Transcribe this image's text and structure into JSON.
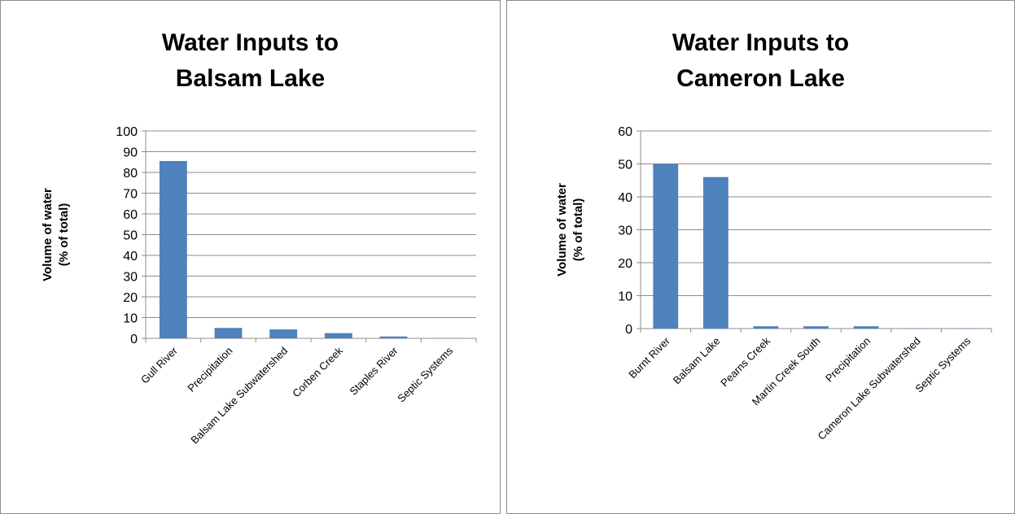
{
  "chart_data": [
    {
      "type": "bar",
      "title_lines": [
        "Water Inputs to",
        "Balsam Lake"
      ],
      "ylabel_lines": [
        "Volume of water",
        "(% of total)"
      ],
      "xlabel": "",
      "categories": [
        "Gull River",
        "Precipitation",
        "Balsam Lake Subwatershed",
        "Corben Creek",
        "Staples River",
        "Septic Systems"
      ],
      "values": [
        85.5,
        5.0,
        4.3,
        2.5,
        0.9,
        0.1
      ],
      "ylim": [
        0,
        100
      ],
      "yticks": [
        0,
        10,
        20,
        30,
        40,
        50,
        60,
        70,
        80,
        90,
        100
      ],
      "grid": true,
      "color": "#4f81bd"
    },
    {
      "type": "bar",
      "title_lines": [
        "Water Inputs to",
        "Cameron Lake"
      ],
      "ylabel_lines": [
        "Volume of water",
        "(% of total)"
      ],
      "xlabel": "",
      "categories": [
        "Burnt River",
        "Balsam Lake",
        "Pearns Creek",
        "Martin Creek South",
        "Precipitation",
        "Cameron Lake Subwatershed",
        "Septic Systems"
      ],
      "values": [
        50,
        46,
        0.7,
        0.7,
        0.7,
        0.1,
        0.1
      ],
      "ylim": [
        0,
        60
      ],
      "yticks": [
        0,
        10,
        20,
        30,
        40,
        50,
        60
      ],
      "grid": true,
      "color": "#4f81bd"
    }
  ]
}
